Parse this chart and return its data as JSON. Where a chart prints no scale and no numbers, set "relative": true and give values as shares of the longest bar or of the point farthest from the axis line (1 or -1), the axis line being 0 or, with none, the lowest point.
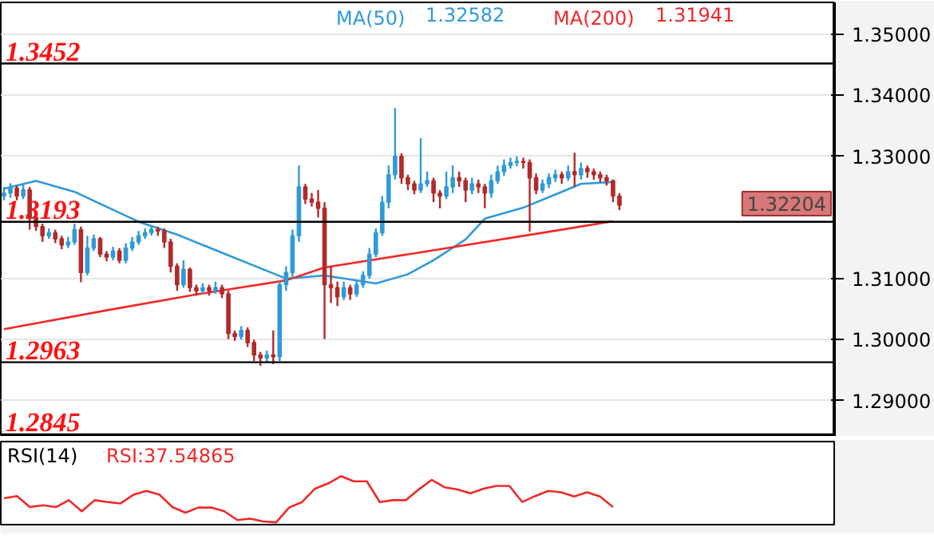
{
  "chart_data": [
    {
      "type": "candlestick",
      "categories": [
        null,
        null,
        null,
        null,
        null,
        null,
        null,
        null,
        null,
        null,
        null,
        null,
        null,
        null,
        null,
        null,
        null,
        null,
        null,
        null,
        null,
        null,
        null,
        null,
        null,
        null,
        null,
        null,
        null,
        null,
        null,
        null,
        null,
        null,
        null,
        null,
        null,
        null,
        null,
        null,
        null,
        null,
        null,
        null,
        null,
        null,
        null,
        null,
        null,
        null,
        null,
        null,
        null,
        null,
        null,
        null,
        null,
        null,
        null,
        null,
        null,
        null,
        null,
        null,
        null,
        null,
        null,
        null,
        null,
        null,
        null,
        null,
        null,
        null,
        null,
        null,
        null,
        null,
        null,
        null,
        null,
        null,
        null,
        null,
        null,
        null,
        null,
        null,
        null,
        null,
        null,
        null,
        null,
        null,
        null,
        null,
        null,
        null,
        null,
        null,
        null,
        null,
        null,
        null,
        null,
        null,
        null,
        null,
        null,
        null,
        null,
        null,
        null,
        null,
        null,
        null,
        null,
        null,
        null,
        null,
        null,
        null,
        null,
        null,
        null,
        null,
        null,
        null,
        null,
        null
      ],
      "ohlc": [
        [
          1.3235,
          1.325,
          1.3228,
          1.324
        ],
        [
          1.324,
          1.3256,
          1.3232,
          1.3248
        ],
        [
          1.3248,
          1.3252,
          1.3228,
          1.3235
        ],
        [
          1.3235,
          1.3255,
          1.323,
          1.3245
        ],
        [
          1.3245,
          1.325,
          1.318,
          1.32
        ],
        [
          1.32,
          1.3205,
          1.3178,
          1.3185
        ],
        [
          1.3185,
          1.319,
          1.316,
          1.317
        ],
        [
          1.317,
          1.3182,
          1.3165,
          1.3175
        ],
        [
          1.3175,
          1.318,
          1.3158,
          1.3165
        ],
        [
          1.3165,
          1.317,
          1.3148,
          1.3155
        ],
        [
          1.3155,
          1.3168,
          1.315,
          1.316
        ],
        [
          1.316,
          1.319,
          1.3155,
          1.318
        ],
        [
          1.318,
          1.3185,
          1.3094,
          1.311
        ],
        [
          1.311,
          1.317,
          1.3105,
          1.315
        ],
        [
          1.315,
          1.3172,
          1.3145,
          1.3165
        ],
        [
          1.3165,
          1.3168,
          1.3135,
          1.314
        ],
        [
          1.314,
          1.3145,
          1.3128,
          1.3135
        ],
        [
          1.3135,
          1.3152,
          1.313,
          1.3145
        ],
        [
          1.3145,
          1.315,
          1.3125,
          1.313
        ],
        [
          1.313,
          1.3158,
          1.3125,
          1.315
        ],
        [
          1.315,
          1.3168,
          1.3145,
          1.316
        ],
        [
          1.316,
          1.3178,
          1.3155,
          1.317
        ],
        [
          1.317,
          1.3182,
          1.3165,
          1.3175
        ],
        [
          1.3175,
          1.3186,
          1.317,
          1.318
        ],
        [
          1.318,
          1.3185,
          1.317,
          1.3178
        ],
        [
          1.3178,
          1.3182,
          1.315,
          1.316
        ],
        [
          1.316,
          1.3165,
          1.311,
          1.312
        ],
        [
          1.312,
          1.3125,
          1.308,
          1.309
        ],
        [
          1.309,
          1.313,
          1.3085,
          1.3115
        ],
        [
          1.3115,
          1.3118,
          1.3078,
          1.3085
        ],
        [
          1.3085,
          1.309,
          1.3072,
          1.308
        ],
        [
          1.308,
          1.3092,
          1.3075,
          1.3085
        ],
        [
          1.3085,
          1.309,
          1.3072,
          1.308
        ],
        [
          1.308,
          1.3095,
          1.3075,
          1.3085
        ],
        [
          1.3085,
          1.309,
          1.3068,
          1.3075
        ],
        [
          1.3075,
          1.308,
          1.3001,
          1.301
        ],
        [
          1.301,
          1.3015,
          1.2998,
          1.3005
        ],
        [
          1.3005,
          1.3022,
          1.3,
          1.3015
        ],
        [
          1.3015,
          1.302,
          1.2988,
          1.2995
        ],
        [
          1.2995,
          1.3,
          1.2965,
          1.2975
        ],
        [
          1.2975,
          1.298,
          1.2957,
          1.297
        ],
        [
          1.297,
          1.2982,
          1.2962,
          1.2975
        ],
        [
          1.2975,
          1.3015,
          1.296,
          1.2972
        ],
        [
          1.2972,
          1.3095,
          1.2965,
          1.309
        ],
        [
          1.309,
          1.312,
          1.308,
          1.311
        ],
        [
          1.311,
          1.318,
          1.31,
          1.317
        ],
        [
          1.317,
          1.3285,
          1.316,
          1.325
        ],
        [
          1.325,
          1.3255,
          1.3222,
          1.323
        ],
        [
          1.323,
          1.324,
          1.3218,
          1.3225
        ],
        [
          1.3225,
          1.3245,
          1.32,
          1.3215
        ],
        [
          1.3215,
          1.3225,
          1.3001,
          1.309
        ],
        [
          1.309,
          1.312,
          1.306,
          1.3085
        ],
        [
          1.3085,
          1.3095,
          1.3055,
          1.307
        ],
        [
          1.307,
          1.3095,
          1.3065,
          1.3085
        ],
        [
          1.3085,
          1.309,
          1.3065,
          1.3075
        ],
        [
          1.3075,
          1.3098,
          1.307,
          1.309
        ],
        [
          1.309,
          1.3112,
          1.3085,
          1.3105
        ],
        [
          1.3105,
          1.315,
          1.31,
          1.314
        ],
        [
          1.314,
          1.3182,
          1.3135,
          1.3175
        ],
        [
          1.3175,
          1.3235,
          1.317,
          1.3225
        ],
        [
          1.3225,
          1.3285,
          1.3215,
          1.327
        ],
        [
          1.327,
          1.3379,
          1.3262,
          1.33
        ],
        [
          1.33,
          1.3305,
          1.3255,
          1.3265
        ],
        [
          1.3265,
          1.327,
          1.3245,
          1.3255
        ],
        [
          1.3255,
          1.326,
          1.3238,
          1.3245
        ],
        [
          1.3245,
          1.333,
          1.324,
          1.3255
        ],
        [
          1.3255,
          1.3275,
          1.325,
          1.326
        ],
        [
          1.326,
          1.3265,
          1.3225,
          1.324
        ],
        [
          1.324,
          1.3245,
          1.3215,
          1.3235
        ],
        [
          1.3235,
          1.3275,
          1.323,
          1.325
        ],
        [
          1.325,
          1.3285,
          1.324,
          1.3265
        ],
        [
          1.3265,
          1.3275,
          1.325,
          1.326
        ],
        [
          1.326,
          1.3265,
          1.3225,
          1.3245
        ],
        [
          1.3245,
          1.3265,
          1.3238,
          1.3255
        ],
        [
          1.3255,
          1.3262,
          1.324,
          1.325
        ],
        [
          1.325,
          1.3255,
          1.3215,
          1.324
        ],
        [
          1.324,
          1.327,
          1.3232,
          1.326
        ],
        [
          1.326,
          1.3285,
          1.3255,
          1.3275
        ],
        [
          1.3275,
          1.3295,
          1.3268,
          1.3285
        ],
        [
          1.3285,
          1.3298,
          1.328,
          1.329
        ],
        [
          1.329,
          1.33,
          1.3284,
          1.3292
        ],
        [
          1.3292,
          1.3298,
          1.328,
          1.329
        ],
        [
          1.329,
          1.3295,
          1.3177,
          1.3265
        ],
        [
          1.3265,
          1.3272,
          1.3238,
          1.3245
        ],
        [
          1.3245,
          1.3262,
          1.324,
          1.3255
        ],
        [
          1.3255,
          1.3272,
          1.3248,
          1.3265
        ],
        [
          1.3265,
          1.3278,
          1.3258,
          1.327
        ],
        [
          1.327,
          1.3275,
          1.3255,
          1.3265
        ],
        [
          1.3265,
          1.3285,
          1.326,
          1.3275
        ],
        [
          1.3275,
          1.3306,
          1.325,
          1.327
        ],
        [
          1.327,
          1.329,
          1.3262,
          1.328
        ],
        [
          1.328,
          1.3285,
          1.3265,
          1.3275
        ],
        [
          1.3275,
          1.328,
          1.3262,
          1.327
        ],
        [
          1.327,
          1.3275,
          1.3258,
          1.3265
        ],
        [
          1.3265,
          1.327,
          1.3252,
          1.326
        ],
        [
          1.326,
          1.3262,
          1.3225,
          1.3235
        ],
        [
          1.3235,
          1.324,
          1.3212,
          1.322
        ],
        null,
        null,
        null,
        null,
        null,
        null,
        null,
        null,
        null,
        null,
        null,
        null,
        null,
        null,
        null,
        null,
        null,
        null,
        null,
        null,
        null,
        null,
        null,
        null,
        null,
        null,
        null,
        null,
        null,
        null,
        null,
        null,
        null
      ],
      "series": [
        {
          "name": "MA(50)",
          "type": "line",
          "color": "#2f9ad8",
          "values": [
            1.3247,
            null,
            null,
            null,
            null,
            1.326,
            null,
            null,
            null,
            null,
            null,
            1.3242,
            null,
            null,
            null,
            null,
            null,
            null,
            null,
            null,
            null,
            1.3193,
            null,
            null,
            null,
            null,
            null,
            1.3172,
            null,
            null,
            null,
            null,
            null,
            null,
            null,
            1.3138,
            null,
            null,
            null,
            null,
            null,
            null,
            null,
            null,
            1.31,
            null,
            null,
            null,
            null,
            null,
            1.3105,
            null,
            null,
            null,
            null,
            null,
            null,
            null,
            1.3092,
            null,
            null,
            null,
            null,
            1.3107,
            null,
            null,
            null,
            1.313,
            null,
            null,
            null,
            null,
            1.3164,
            null,
            null,
            1.3198,
            null,
            null,
            null,
            null,
            null,
            1.3216,
            null,
            null,
            null,
            null,
            null,
            1.3242,
            null,
            null,
            1.3255,
            null,
            null,
            null,
            null,
            1.3258,
            null,
            null,
            null,
            null,
            null,
            null,
            null,
            null,
            null,
            null,
            null,
            null,
            null,
            null,
            null,
            null,
            null,
            null,
            null,
            null,
            null,
            null,
            null,
            null,
            null,
            null,
            null,
            null,
            null,
            null,
            null,
            null,
            null,
            null
          ]
        },
        {
          "name": "MA(200)",
          "type": "line",
          "color": "#f02828",
          "values": [
            1.3017,
            null,
            null,
            null,
            null,
            null,
            null,
            null,
            null,
            null,
            null,
            null,
            null,
            null,
            null,
            null,
            1.3048,
            null,
            null,
            null,
            null,
            null,
            null,
            null,
            null,
            null,
            null,
            null,
            null,
            null,
            1.3074,
            null,
            null,
            null,
            null,
            null,
            null,
            null,
            null,
            null,
            null,
            null,
            null,
            null,
            1.3097,
            null,
            null,
            null,
            null,
            null,
            1.3118,
            null,
            null,
            null,
            null,
            null,
            null,
            null,
            null,
            null,
            null,
            null,
            null,
            null,
            null,
            1.3143,
            null,
            null,
            null,
            null,
            null,
            null,
            null,
            null,
            null,
            null,
            null,
            null,
            null,
            null,
            null,
            null,
            null,
            null,
            null,
            null,
            null,
            1.318,
            null,
            null,
            null,
            null,
            null,
            null,
            null,
            1.3194,
            null,
            null,
            null,
            null,
            null,
            null,
            null,
            null,
            null,
            null,
            null,
            null,
            null,
            null,
            null,
            null,
            null,
            null,
            null,
            null,
            null,
            null,
            null,
            null,
            null,
            null,
            null,
            null,
            null,
            null,
            null,
            null,
            null,
            null
          ]
        }
      ],
      "annotations": [
        "1.32582",
        "1.31941",
        "1.32204"
      ],
      "ref_lines": [
        {
          "axis": "y",
          "value": 1.3452,
          "label": "1.3452",
          "color": "#000000"
        },
        {
          "axis": "y",
          "value": 1.3193,
          "label": "1.3193",
          "color": "#000000"
        },
        {
          "axis": "y",
          "value": 1.2963,
          "label": "1.2963",
          "color": "#000000"
        },
        {
          "axis": "y",
          "value": 1.2845,
          "label": "1.2845",
          "color": "#000000"
        }
      ],
      "ylim": [
        1.2841,
        1.3552
      ],
      "yticks": [
        {
          "value": 1.29,
          "label": "1.29000"
        },
        {
          "value": 1.3,
          "label": "1.30000"
        },
        {
          "value": 1.31,
          "label": "1.31000"
        },
        {
          "value": 1.33,
          "label": "1.33000"
        },
        {
          "value": 1.34,
          "label": "1.34000"
        },
        {
          "value": 1.35,
          "label": "1.35000"
        }
      ],
      "tick_labels": "y",
      "grid": "y"
    },
    {
      "type": "line",
      "title": "RSI(14)",
      "annotations": [
        "RSI:37.54865"
      ],
      "relative": true,
      "color": "#f02828",
      "tick_labels": false,
      "categories": [
        null,
        null,
        null,
        null,
        null,
        null,
        null,
        null,
        null,
        null,
        null,
        null,
        null,
        null,
        null,
        null,
        null,
        null,
        null,
        null,
        null,
        null,
        null,
        null,
        null,
        null,
        null,
        null,
        null,
        null,
        null,
        null,
        null,
        null,
        null,
        null,
        null,
        null,
        null,
        null,
        null,
        null,
        null,
        null,
        null,
        null,
        null,
        null
      ],
      "values": [
        0.52,
        0.57,
        0.33,
        0.37,
        0.33,
        0.48,
        0.24,
        0.48,
        0.44,
        0.41,
        0.6,
        0.68,
        0.6,
        0.33,
        0.21,
        0.32,
        0.32,
        0.24,
        0.05,
        0.08,
        0.02,
        0,
        0.32,
        0.44,
        0.73,
        0.84,
        1,
        0.89,
        0.89,
        0.44,
        0.48,
        0.48,
        0.71,
        0.92,
        0.76,
        0.71,
        0.63,
        0.73,
        0.79,
        0.79,
        0.44,
        0.57,
        0.68,
        0.65,
        0.56,
        0.65,
        0.56,
        0.33
      ]
    }
  ]
}
